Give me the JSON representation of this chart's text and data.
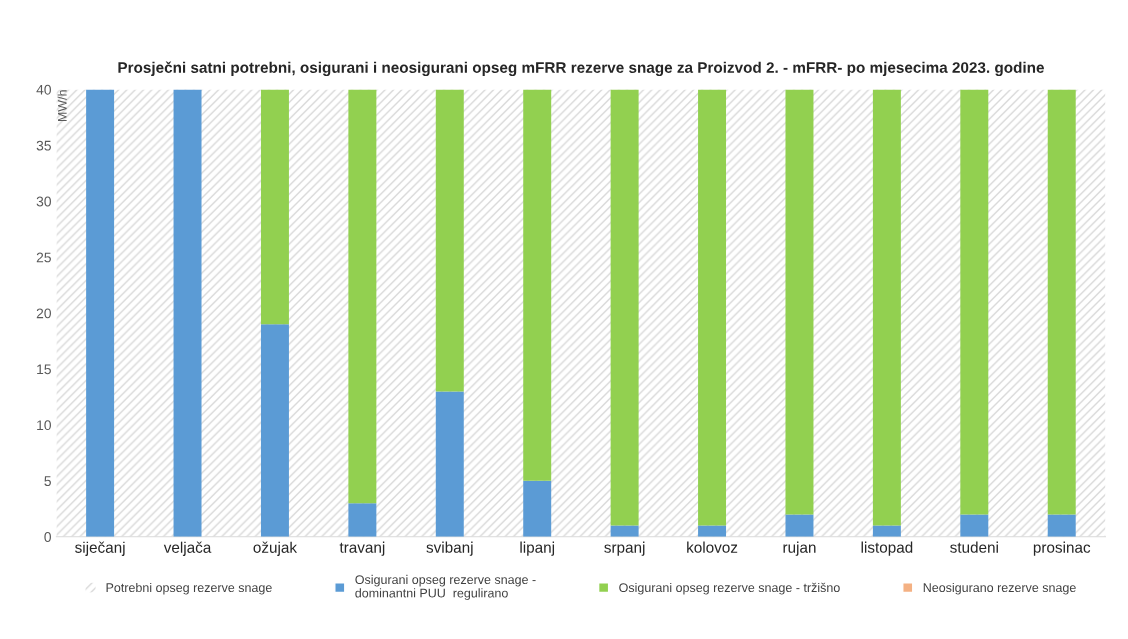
{
  "chart_data": {
    "type": "bar",
    "title": "Prosječni satni potrebni, osigurani i neosigurani opseg mFRR rezerve snage za Proizvod 2. - mFRR- po mjesecima 2023. godine",
    "ylabel": "MW/h",
    "categories": [
      "siječanj",
      "veljača",
      "ožujak",
      "travanj",
      "svibanj",
      "lipanj",
      "srpanj",
      "kolovoz",
      "rujan",
      "listopad",
      "studeni",
      "prosinac"
    ],
    "stacked": true,
    "series": [
      {
        "name": "Osigurani opseg rezerve snage -\ndominantni PUU  regulirano",
        "color": "#5b9bd5",
        "values": [
          40,
          40,
          19,
          3,
          13,
          5,
          1,
          1,
          2,
          1,
          2,
          2
        ]
      },
      {
        "name": "Osigurani opseg rezerve snage - tržišno",
        "color": "#92d050",
        "values": [
          0,
          0,
          21,
          37,
          27,
          35,
          39,
          39,
          38,
          39,
          38,
          38
        ]
      },
      {
        "name": "Neosigurano rezerve snage",
        "color": "#f4b183",
        "values": [
          0,
          0,
          0,
          0,
          0,
          0,
          0,
          0,
          0,
          0,
          0,
          0
        ]
      }
    ],
    "ylim": [
      0,
      40
    ],
    "yticks": [
      0,
      5,
      10,
      15,
      20,
      25,
      30,
      35,
      40
    ],
    "bands": [
      {
        "axis": "y",
        "from": 0,
        "to": 40,
        "label": "Potrebni opseg rezerve snage",
        "color": "#d9d9d9"
      }
    ],
    "grid": false,
    "legend": "bottom"
  }
}
